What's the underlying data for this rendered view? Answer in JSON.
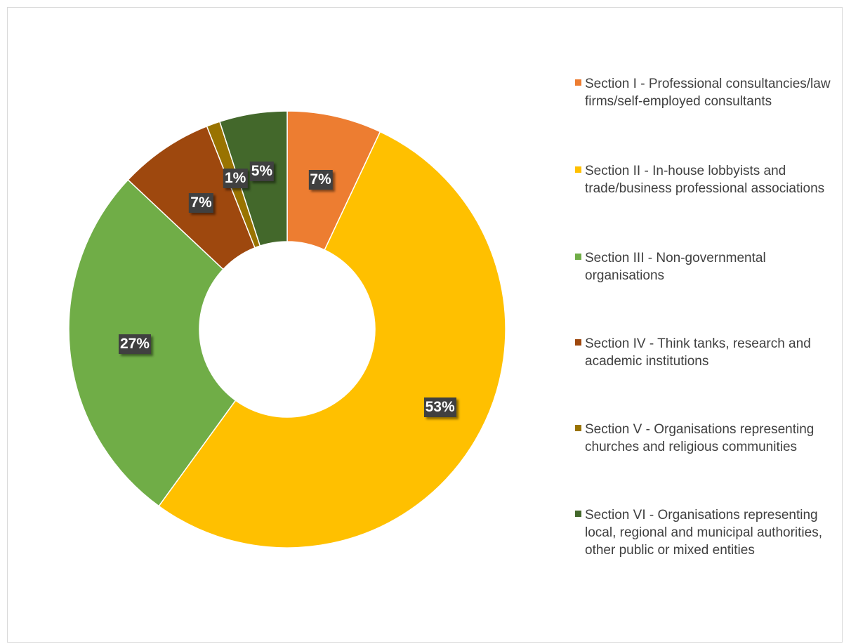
{
  "chart_data": {
    "type": "pie",
    "donut": true,
    "legend_position": "right",
    "categories": [
      "Section I - Professional consultancies/law firms/self-employed consultants",
      "Section II - In-house lobbyists and trade/business professional associations",
      "Section III - Non-governmental organisations",
      "Section IV - Think tanks, research and academic institutions",
      "Section V - Organisations representing churches and religious communities",
      "Section VI - Organisations representing local, regional and municipal authorities, other public or mixed entities"
    ],
    "values": [
      7,
      53,
      27,
      7,
      1,
      5
    ],
    "labels": [
      "7%",
      "53%",
      "27%",
      "7%",
      "1%",
      "5%"
    ],
    "colors": [
      "#ED7D31",
      "#FFC000",
      "#70AD47",
      "#9E480E",
      "#997300",
      "#43682B"
    ]
  }
}
